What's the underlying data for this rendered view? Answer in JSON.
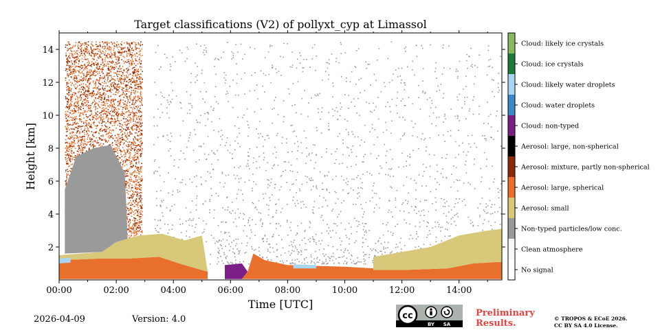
{
  "chart_data": {
    "type": "heatmap",
    "title": "Target classifications (V2) of pollyxt_cyp at Limassol",
    "xlabel": "Time [UTC]",
    "ylabel": "Height [km]",
    "xlim": [
      0,
      15.5
    ],
    "ylim": [
      0,
      15
    ],
    "x_ticks": [
      {
        "value": 0,
        "label": "00:00"
      },
      {
        "value": 2,
        "label": "02:00"
      },
      {
        "value": 4,
        "label": "04:00"
      },
      {
        "value": 6,
        "label": "06:00"
      },
      {
        "value": 8,
        "label": "08:00"
      },
      {
        "value": 10,
        "label": "10:00"
      },
      {
        "value": 12,
        "label": "12:00"
      },
      {
        "value": 14,
        "label": "14:00"
      }
    ],
    "y_ticks": [
      {
        "value": 2,
        "label": "2"
      },
      {
        "value": 4,
        "label": "4"
      },
      {
        "value": 6,
        "label": "6"
      },
      {
        "value": 8,
        "label": "8"
      },
      {
        "value": 10,
        "label": "10"
      },
      {
        "value": 12,
        "label": "12"
      },
      {
        "value": 14,
        "label": "14"
      }
    ],
    "classes": [
      {
        "name": "No signal",
        "color": "#ffffff"
      },
      {
        "name": "Clean atmosphere",
        "color": "#f7f7f7"
      },
      {
        "name": "Non-typed particles/low conc.",
        "color": "#9a9a9a"
      },
      {
        "name": "Aerosol: small",
        "color": "#d8c87a"
      },
      {
        "name": "Aerosol: large, spherical",
        "color": "#e8702c"
      },
      {
        "name": "Aerosol: mixture, partly non-spherical",
        "color": "#8a2a0a"
      },
      {
        "name": "Aerosol: large, non-spherical",
        "color": "#000000"
      },
      {
        "name": "Cloud: non-typed",
        "color": "#7b1f86"
      },
      {
        "name": "Cloud: water droplets",
        "color": "#3c87c8"
      },
      {
        "name": "Cloud: likely water droplets",
        "color": "#a8d6f2"
      },
      {
        "name": "Cloud: ice crystals",
        "color": "#1f7a3a"
      },
      {
        "name": "Cloud: likely ice crystals",
        "color": "#8ab860"
      }
    ],
    "layers": [
      {
        "class": "Aerosol: large, spherical",
        "points": [
          [
            0,
            0.05
          ],
          [
            0,
            1.2
          ],
          [
            1.5,
            1.3
          ],
          [
            2.5,
            1.3
          ],
          [
            3.5,
            1.4
          ],
          [
            4.2,
            1.0
          ],
          [
            5.2,
            0.5
          ],
          [
            5.2,
            0.05
          ]
        ]
      },
      {
        "class": "Aerosol: small",
        "points": [
          [
            0,
            1.2
          ],
          [
            0,
            1.5
          ],
          [
            1.5,
            1.7
          ],
          [
            2.0,
            2.3
          ],
          [
            2.8,
            2.7
          ],
          [
            3.6,
            2.8
          ],
          [
            4.4,
            2.4
          ],
          [
            5.0,
            2.7
          ],
          [
            5.2,
            0.5
          ],
          [
            4.2,
            1.0
          ],
          [
            3.5,
            1.4
          ],
          [
            2.5,
            1.3
          ],
          [
            1.5,
            1.3
          ]
        ]
      },
      {
        "class": "Non-typed particles/low conc.",
        "points": [
          [
            0.2,
            1.6
          ],
          [
            0.2,
            5.5
          ],
          [
            0.6,
            7.5
          ],
          [
            1.2,
            8.0
          ],
          [
            1.8,
            8.2
          ],
          [
            2.3,
            6.5
          ],
          [
            2.4,
            2.5
          ],
          [
            2.0,
            2.3
          ],
          [
            1.5,
            1.7
          ]
        ]
      },
      {
        "class": "Cloud: non-typed",
        "points": [
          [
            5.8,
            0.05
          ],
          [
            5.8,
            0.9
          ],
          [
            6.4,
            1.0
          ],
          [
            6.6,
            0.5
          ],
          [
            6.4,
            0.05
          ]
        ]
      },
      {
        "class": "Aerosol: large, spherical",
        "points": [
          [
            6.4,
            0.05
          ],
          [
            6.6,
            0.5
          ],
          [
            6.8,
            1.6
          ],
          [
            7.2,
            1.2
          ],
          [
            8.0,
            0.9
          ],
          [
            10.0,
            0.8
          ],
          [
            12.0,
            0.6
          ],
          [
            13.6,
            0.7
          ],
          [
            14.5,
            1.0
          ],
          [
            15.5,
            1.1
          ],
          [
            15.5,
            0.05
          ]
        ]
      },
      {
        "class": "Aerosol: small",
        "points": [
          [
            11.0,
            0.6
          ],
          [
            11.0,
            1.4
          ],
          [
            12.0,
            1.7
          ],
          [
            13.0,
            2.0
          ],
          [
            14.0,
            2.7
          ],
          [
            15.0,
            3.0
          ],
          [
            15.5,
            3.1
          ],
          [
            15.5,
            1.1
          ],
          [
            14.5,
            1.0
          ],
          [
            13.6,
            0.7
          ],
          [
            12.0,
            0.6
          ]
        ]
      },
      {
        "class": "Cloud: likely water droplets",
        "points": [
          [
            0,
            1.0
          ],
          [
            0,
            1.3
          ],
          [
            0.4,
            1.35
          ],
          [
            0.4,
            1.05
          ]
        ]
      },
      {
        "class": "Cloud: likely water droplets",
        "points": [
          [
            8.2,
            0.7
          ],
          [
            8.2,
            0.95
          ],
          [
            9.0,
            0.9
          ],
          [
            9.0,
            0.7
          ]
        ]
      }
    ],
    "scatter": [
      {
        "class": "Aerosol: large, spherical",
        "x_range": [
          0.2,
          2.9
        ],
        "y_range": [
          2.5,
          14.5
        ],
        "density": 0.42
      },
      {
        "class": "Aerosol: mixture, partly non-spherical",
        "x_range": [
          0.2,
          2.9
        ],
        "y_range": [
          3.0,
          14.5
        ],
        "density": 0.18
      },
      {
        "class": "Non-typed particles/low conc.",
        "x_range": [
          3.3,
          15.5
        ],
        "y_range": [
          1.0,
          14.5
        ],
        "density": 0.05
      }
    ]
  },
  "colorbar": {
    "labels": [
      "Cloud: likely ice crystals",
      "Cloud: ice crystals",
      "Cloud: likely water droplets",
      "Cloud: water droplets",
      "Cloud: non-typed",
      "Aerosol: large, non-spherical",
      "Aerosol: mixture, partly non-spherical",
      "Aerosol: large, spherical",
      "Aerosol: small",
      "Non-typed particles/low conc.",
      "Clean atmosphere",
      "No signal"
    ],
    "colors": [
      "#8ab860",
      "#1f7a3a",
      "#a8d6f2",
      "#3c87c8",
      "#7b1f86",
      "#000000",
      "#8a2a0a",
      "#e8702c",
      "#d8c87a",
      "#9a9a9a",
      "#f7f7f7",
      "#ffffff"
    ]
  },
  "footer": {
    "date": "2026-04-09",
    "version": "Version: 4.0",
    "preliminary_line1": "Preliminary",
    "preliminary_line2": "Results.",
    "copyright_line1": "© TROPOS & ECoE 2026.",
    "copyright_line2": "CC BY SA 4.0 License.",
    "license_badge": "cc-by-sa-icon",
    "license_by": "BY",
    "license_sa": "SA"
  }
}
